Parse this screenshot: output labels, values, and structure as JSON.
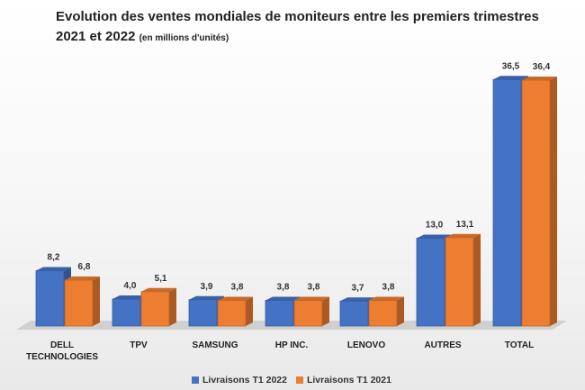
{
  "title": {
    "main": "Evolution des ventes mondiales de moniteurs entre les premiers trimestres 2021 et 2022",
    "unit": "(en millions d'unités)"
  },
  "colors": {
    "2022": "#4472C4",
    "2021": "#ED7D31"
  },
  "chart_data": {
    "type": "bar",
    "title": "Evolution des ventes mondiales de moniteurs entre les premiers trimestres 2021 et 2022 (en millions d'unités)",
    "categories": [
      "DELL TECHNOLOGIES",
      "TPV",
      "SAMSUNG",
      "HP INC.",
      "LENOVO",
      "AUTRES",
      "TOTAL"
    ],
    "series": [
      {
        "name": "Livraisons T1 2022",
        "values": [
          8.2,
          4.0,
          3.9,
          3.8,
          3.7,
          13.0,
          36.5
        ],
        "labels": [
          "8,2",
          "4,0",
          "3,9",
          "3,8",
          "3,7",
          "13,0",
          "36,5"
        ]
      },
      {
        "name": "Livraisons T1 2021",
        "values": [
          6.8,
          5.1,
          3.8,
          3.8,
          3.8,
          13.1,
          36.4
        ],
        "labels": [
          "6,8",
          "5,1",
          "3,8",
          "3,8",
          "3,8",
          "13,1",
          "36,4"
        ]
      }
    ],
    "xlabel": "",
    "ylabel": "",
    "ylim": [
      0,
      40
    ],
    "grid": false,
    "legend": "bottom",
    "style": "3d-clustered-bar"
  }
}
